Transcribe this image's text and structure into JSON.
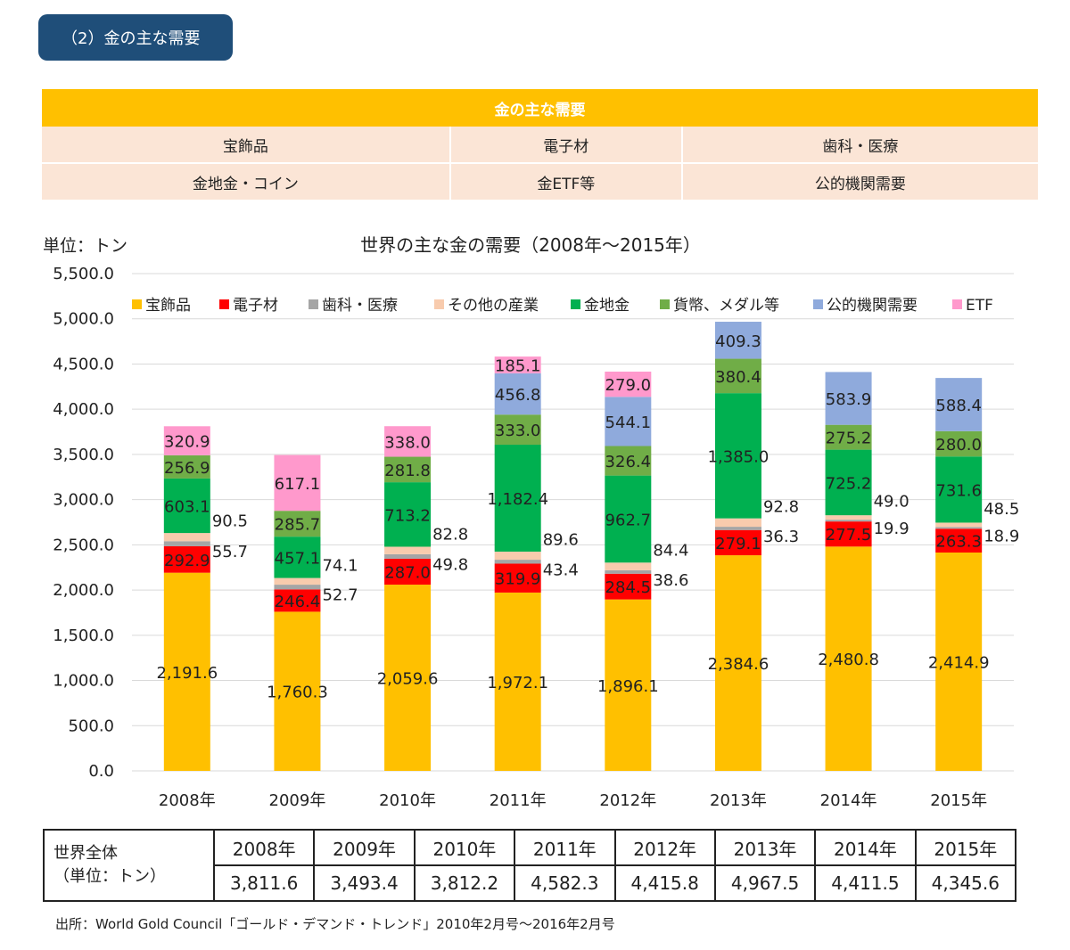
{
  "section_badge": "（2）金の主な需要",
  "info_table": {
    "header": "金の主な需要",
    "rows": [
      [
        "宝飾品",
        "電子材",
        "歯科・医療"
      ],
      [
        "金地金・コイン",
        "金ETF等",
        "公的機関需要"
      ]
    ]
  },
  "chart_data": {
    "type": "bar",
    "stacked": true,
    "title": "世界の主な金の需要（2008年〜2015年）",
    "unit_label": "単位：トン",
    "categories": [
      "2008年",
      "2009年",
      "2010年",
      "2011年",
      "2012年",
      "2013年",
      "2014年",
      "2015年"
    ],
    "ylim": [
      0,
      5500
    ],
    "y_ticks": [
      "0.0",
      "500.0",
      "1,000.0",
      "1,500.0",
      "2,000.0",
      "2,500.0",
      "3,000.0",
      "3,500.0",
      "4,000.0",
      "4,500.0",
      "5,000.0",
      "5,500.0"
    ],
    "grid": true,
    "legend_position": "top",
    "series": [
      {
        "name": "宝飾品",
        "color": "#ffc000",
        "values": [
          2191.6,
          1760.3,
          2059.6,
          1972.1,
          1896.1,
          2384.6,
          2480.8,
          2414.9
        ],
        "labels": [
          "2,191.6",
          "1,760.3",
          "2,059.6",
          "1,972.1",
          "1,896.1",
          "2,384.6",
          "2,480.8",
          "2,414.9"
        ]
      },
      {
        "name": "電子材",
        "color": "#ff0000",
        "values": [
          292.9,
          246.4,
          287.0,
          319.9,
          284.5,
          279.1,
          277.5,
          263.3
        ],
        "labels": [
          "292.9",
          "246.4",
          "287.0",
          "319.9",
          "284.5",
          "279.1",
          "277.5",
          "263.3"
        ]
      },
      {
        "name": "歯科・医療",
        "color": "#a5a5a5",
        "values": [
          55.7,
          52.7,
          49.8,
          43.4,
          38.6,
          36.3,
          19.9,
          18.9
        ],
        "labels": [
          "55.7",
          "52.7",
          "49.8",
          "43.4",
          "38.6",
          "36.3",
          "19.9",
          "18.9"
        ]
      },
      {
        "name": "その他の産業",
        "color": "#f8cbad",
        "values": [
          90.5,
          74.1,
          82.8,
          89.6,
          84.4,
          92.8,
          49.0,
          48.5
        ],
        "labels": [
          "90.5",
          "74.1",
          "82.8",
          "89.6",
          "84.4",
          "92.8",
          "49.0",
          "48.5"
        ]
      },
      {
        "name": "金地金",
        "color": "#00b050",
        "values": [
          603.1,
          457.1,
          713.2,
          1182.4,
          962.7,
          1385.0,
          725.2,
          731.6
        ],
        "labels": [
          "603.1",
          "457.1",
          "713.2",
          "1,182.4",
          "962.7",
          "1,385.0",
          "725.2",
          "731.6"
        ]
      },
      {
        "name": "貨幣、メダル等",
        "color": "#70ad47",
        "values": [
          256.9,
          285.7,
          281.8,
          333.0,
          326.4,
          380.4,
          275.2,
          280.0
        ],
        "labels": [
          "256.9",
          "285.7",
          "281.8",
          "333.0",
          "326.4",
          "380.4",
          "275.2",
          "280.0"
        ]
      },
      {
        "name": "公的機関需要",
        "color": "#8faadc",
        "values": [
          0,
          0,
          0,
          456.8,
          544.1,
          409.3,
          583.9,
          588.4
        ],
        "labels": [
          "",
          "",
          "",
          "456.8",
          "544.1",
          "409.3",
          "583.9",
          "588.4"
        ]
      },
      {
        "name": "ETF",
        "color": "#ff99cc",
        "values": [
          320.9,
          617.1,
          338.0,
          185.1,
          279.0,
          0,
          0,
          0
        ],
        "labels": [
          "320.9",
          "617.1",
          "338.0",
          "185.1",
          "279.0",
          "",
          "",
          ""
        ]
      }
    ]
  },
  "totals_table": {
    "label_line1": "世界全体",
    "label_line2": "（単位：トン）",
    "years": [
      "2008年",
      "2009年",
      "2010年",
      "2011年",
      "2012年",
      "2013年",
      "2014年",
      "2015年"
    ],
    "values": [
      "3,811.6",
      "3,493.4",
      "3,812.2",
      "4,582.3",
      "4,415.8",
      "4,967.5",
      "4,411.5",
      "4,345.6"
    ]
  },
  "source": "出所：World Gold Council「ゴールド・デマンド・トレンド」2010年2月号〜2016年2月号"
}
